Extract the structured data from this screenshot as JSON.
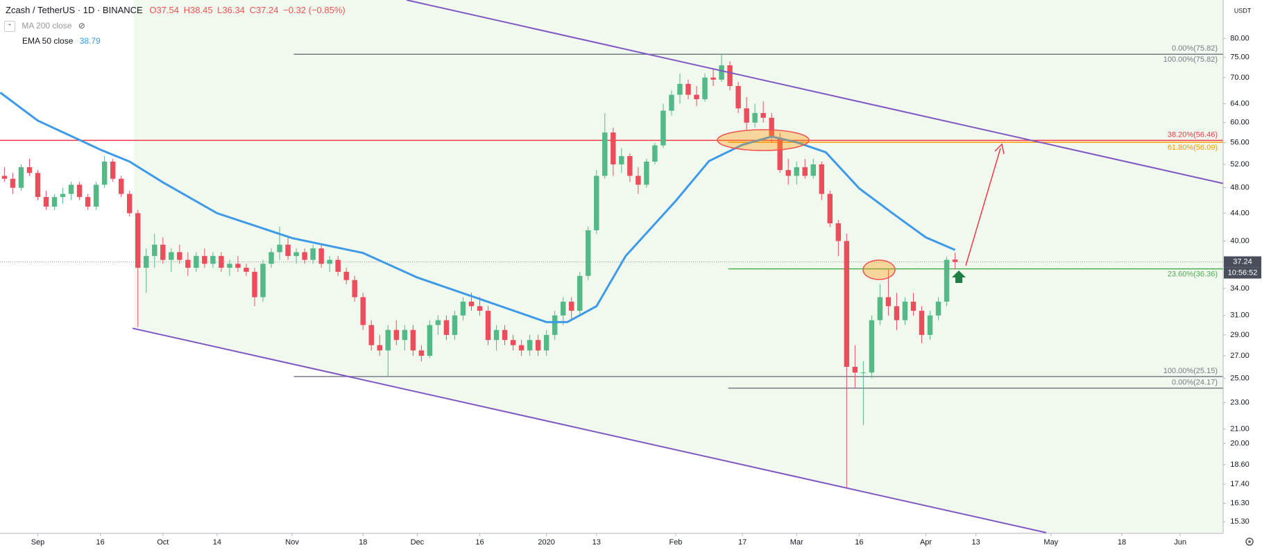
{
  "chart_data": {
    "type": "candlestick",
    "title": "Zcash / TetherUS · 1D · BINANCE",
    "ohlc_labels": [
      "O37.54",
      "H38.45",
      "L36.34",
      "C37.24",
      "−0.32 (−0.85%)"
    ],
    "y_unit": "USDT",
    "last_price": 37.24,
    "countdown": "10:56:52",
    "log_scale": true,
    "up_color": "#53b987",
    "down_color": "#eb4d5c",
    "xlim": [
      -9.07,
      284.3
    ],
    "ylim": [
      14.7,
      91.3
    ],
    "xticks": [
      {
        "value": 0,
        "label": "Sep"
      },
      {
        "value": 15,
        "label": "16"
      },
      {
        "value": 30,
        "label": "Oct"
      },
      {
        "value": 43,
        "label": "14"
      },
      {
        "value": 61,
        "label": "Nov"
      },
      {
        "value": 78,
        "label": "18"
      },
      {
        "value": 91,
        "label": "Dec"
      },
      {
        "value": 106,
        "label": "16"
      },
      {
        "value": 122,
        "label": "2020"
      },
      {
        "value": 134,
        "label": "13"
      },
      {
        "value": 153,
        "label": "Feb"
      },
      {
        "value": 169,
        "label": "17"
      },
      {
        "value": 182,
        "label": "Mar"
      },
      {
        "value": 197,
        "label": "16"
      },
      {
        "value": 213,
        "label": "Apr"
      },
      {
        "value": 225,
        "label": "13"
      },
      {
        "value": 243,
        "label": "May"
      },
      {
        "value": 260,
        "label": "18"
      },
      {
        "value": 274,
        "label": "Jun"
      }
    ],
    "yticks": [
      {
        "value": 80,
        "label": "80.00"
      },
      {
        "value": 75,
        "label": "75.00"
      },
      {
        "value": 70,
        "label": "70.00"
      },
      {
        "value": 64,
        "label": "64.00"
      },
      {
        "value": 60,
        "label": "60.00"
      },
      {
        "value": 56,
        "label": "56.00"
      },
      {
        "value": 52,
        "label": "52.00"
      },
      {
        "value": 48,
        "label": "48.00"
      },
      {
        "value": 44,
        "label": "44.00"
      },
      {
        "value": 40,
        "label": "40.00"
      },
      {
        "value": 34,
        "label": "34.00"
      },
      {
        "value": 31,
        "label": "31.00"
      },
      {
        "value": 29,
        "label": "29.00"
      },
      {
        "value": 27,
        "label": "27.00"
      },
      {
        "value": 25,
        "label": "25.00"
      },
      {
        "value": 23,
        "label": "23.00"
      },
      {
        "value": 21,
        "label": "21.00"
      },
      {
        "value": 20,
        "label": "20.00"
      },
      {
        "value": 18.6,
        "label": "18.60"
      },
      {
        "value": 17.4,
        "label": "17.40"
      },
      {
        "value": 16.3,
        "label": "16.30"
      },
      {
        "value": 15.3,
        "label": "15.30"
      }
    ],
    "x": [
      -8,
      -6,
      -4,
      -2,
      0,
      2,
      4,
      6,
      8,
      10,
      12,
      14,
      16,
      18,
      20,
      22,
      24,
      26,
      28,
      30,
      32,
      34,
      36,
      38,
      40,
      42,
      44,
      46,
      48,
      50,
      52,
      54,
      56,
      58,
      60,
      62,
      64,
      66,
      68,
      70,
      72,
      74,
      76,
      78,
      80,
      82,
      84,
      86,
      88,
      90,
      92,
      94,
      96,
      98,
      100,
      102,
      104,
      106,
      108,
      110,
      112,
      114,
      116,
      118,
      120,
      122,
      124,
      126,
      128,
      130,
      132,
      134,
      136,
      138,
      140,
      142,
      144,
      146,
      148,
      150,
      152,
      154,
      156,
      158,
      160,
      162,
      164,
      166,
      168,
      170,
      172,
      174,
      176,
      178,
      180,
      182,
      184,
      186,
      188,
      190,
      192,
      194,
      196,
      198,
      200,
      202,
      204,
      206,
      208,
      210,
      212,
      214,
      216,
      218,
      220
    ],
    "open": [
      50,
      49.5,
      48,
      51.5,
      50.5,
      46.5,
      45,
      46.5,
      47,
      48.5,
      46.5,
      45,
      48.5,
      52.5,
      49.5,
      47,
      44,
      36.5,
      38,
      39.5,
      37.5,
      38.5,
      37.5,
      36.5,
      38,
      37,
      38,
      36.5,
      37,
      36.5,
      36,
      33,
      37,
      38.5,
      39.5,
      38,
      38.5,
      37.5,
      39,
      37,
      37.5,
      36,
      35,
      33,
      30,
      28,
      27.5,
      29.5,
      28.5,
      29.5,
      27.5,
      27,
      30,
      30.5,
      29,
      31,
      32.5,
      32,
      31.5,
      28.5,
      29.5,
      28.5,
      28,
      27.5,
      28.5,
      27.5,
      29,
      31,
      32.5,
      31.5,
      35.5,
      41.5,
      50,
      58,
      52,
      53.5,
      50,
      48.5,
      52.5,
      55.5,
      62.5,
      66,
      68.5,
      66,
      65,
      70,
      69.5,
      73,
      68,
      63,
      60,
      62,
      61,
      57,
      51,
      50,
      51.5,
      50,
      52,
      47,
      42.5,
      40,
      26,
      25.5,
      25.5,
      30.5,
      33,
      32,
      30.5,
      32.5,
      31.5,
      29,
      31,
      32.5,
      37.54
    ],
    "high": [
      51.5,
      50.5,
      52,
      53,
      51,
      47.5,
      47,
      48,
      49,
      49,
      47,
      49,
      53.5,
      53,
      50,
      47.5,
      44.5,
      39,
      41,
      40.5,
      39,
      39.5,
      38.5,
      38.5,
      39,
      38.5,
      38.5,
      37.5,
      38,
      37,
      36.5,
      37.5,
      39,
      42,
      40.5,
      39,
      39,
      39.5,
      39.5,
      38,
      38,
      36.5,
      35.5,
      33.5,
      30.5,
      29,
      30,
      30.5,
      30,
      30,
      28,
      30.5,
      31,
      31,
      31.5,
      33,
      33.5,
      33,
      32,
      30,
      30,
      29,
      28.5,
      29,
      29,
      29.5,
      31.5,
      33,
      33,
      36,
      42,
      51,
      62,
      59,
      55,
      54,
      51.5,
      53,
      56,
      64,
      67,
      71,
      69.5,
      68,
      71,
      72,
      75.82,
      74,
      69,
      65.5,
      64,
      64.5,
      62,
      58,
      53,
      52.5,
      53,
      53,
      52.5,
      47.5,
      43,
      41,
      28,
      26.5,
      31,
      34.5,
      36.3,
      33.5,
      33,
      33.5,
      32,
      31.5,
      33,
      37.9,
      38.45
    ],
    "low": [
      49,
      47,
      47.5,
      50,
      46,
      44.5,
      44.5,
      45.5,
      46,
      46,
      44.5,
      44.5,
      48,
      49,
      46.5,
      43.5,
      29.8,
      33.5,
      36.5,
      37,
      36,
      37,
      35.5,
      36,
      36.5,
      36.5,
      36,
      35.5,
      36,
      35.5,
      32,
      32.5,
      36.5,
      37.5,
      37.5,
      37,
      37,
      37,
      36.5,
      36,
      35.5,
      34.5,
      32.5,
      29.5,
      27.5,
      27,
      25.15,
      28,
      27.5,
      27,
      26.5,
      26.8,
      29,
      28.5,
      28.5,
      30.5,
      31.5,
      31,
      28,
      27.5,
      28,
      27.5,
      27,
      27,
      27,
      27,
      28.5,
      30,
      30.5,
      31,
      35,
      41,
      49.5,
      50,
      50.5,
      49,
      47,
      48,
      52,
      55,
      61.5,
      64,
      65,
      63.5,
      64.5,
      68,
      69,
      67,
      62,
      58.5,
      59,
      60,
      56,
      50.5,
      48.5,
      48.5,
      49.5,
      49.5,
      46,
      42,
      38,
      17.2,
      24.2,
      21.3,
      25,
      30,
      31,
      29.5,
      30,
      31,
      28.2,
      28.5,
      30.5,
      32,
      36.34
    ],
    "close": [
      49.5,
      48,
      51.5,
      50.5,
      46.5,
      45,
      46.5,
      47,
      48.5,
      46.5,
      45,
      48.5,
      52.5,
      49.5,
      47,
      44,
      36.5,
      38,
      39.5,
      37.5,
      38.5,
      37.5,
      36.5,
      38,
      37,
      38,
      36.5,
      37,
      36.5,
      36,
      33,
      37,
      38.5,
      39.5,
      38,
      38.5,
      37.5,
      39,
      37,
      37.5,
      36,
      35,
      33,
      30,
      28,
      27.5,
      29.5,
      28.5,
      29.5,
      27.5,
      27,
      30,
      30.5,
      29,
      31,
      32.5,
      32,
      31.5,
      28.5,
      29.5,
      28.5,
      28,
      27.5,
      28.5,
      27.5,
      29,
      31,
      32.5,
      31.5,
      35.5,
      41.5,
      50,
      58,
      52,
      53.5,
      50,
      48.5,
      52.5,
      55.5,
      62.5,
      66,
      68.5,
      66,
      65,
      70,
      69.5,
      73,
      68,
      63,
      60,
      62,
      61,
      57,
      51,
      50,
      51.5,
      50,
      52,
      47,
      42.5,
      40,
      26,
      25.5,
      25.5,
      30.5,
      33,
      32,
      30.5,
      32.5,
      31.5,
      29,
      31,
      32.5,
      37.5,
      37.24
    ],
    "indicators": [
      {
        "name": "MA 200 close",
        "hidden": true
      },
      {
        "name": "EMA 50 close",
        "color": "#3c9ae8",
        "x": [
          -9,
          0,
          15,
          22,
          30,
          43,
          61,
          78,
          91,
          106,
          122,
          127,
          134,
          141,
          153,
          161,
          169,
          176,
          182,
          189,
          197,
          205,
          213,
          220
        ],
        "values": [
          66.5,
          60.4,
          54.7,
          52.5,
          48.9,
          44.0,
          40.4,
          38.4,
          35.3,
          32.8,
          30.3,
          30.3,
          32.0,
          38.0,
          45.9,
          52.6,
          55.6,
          57.2,
          56.1,
          54.2,
          47.9,
          44.0,
          40.5,
          38.79
        ]
      }
    ],
    "fib_levels": [
      {
        "label": "0.00%(75.82)",
        "value": 75.82,
        "x_start": 61.4,
        "color": "#787b86",
        "label_side": "above"
      },
      {
        "label": "100.00%(75.82)",
        "value": 75.82,
        "x_start": 61.4,
        "color": "#787b86",
        "label_side": "below"
      },
      {
        "label": "38.20%(56.46)",
        "value": 56.46,
        "x_start": -9.07,
        "color": "#f23645",
        "label_side": "above"
      },
      {
        "label": "61.80%(56.09)",
        "value": 56.09,
        "x_start": 165.6,
        "color": "#ff9800",
        "label_side": "below"
      },
      {
        "label": "23.60%(36.36)",
        "value": 36.36,
        "x_start": 165.6,
        "color": "#4caf50",
        "label_side": "below"
      },
      {
        "label": "100.00%(25.15)",
        "value": 25.15,
        "x_start": 61.4,
        "color": "#787b86",
        "label_side": "above"
      },
      {
        "label": "0.00%(24.17)",
        "value": 24.17,
        "x_start": 165.6,
        "color": "#787b86",
        "label_side": "above"
      }
    ]
  }
}
